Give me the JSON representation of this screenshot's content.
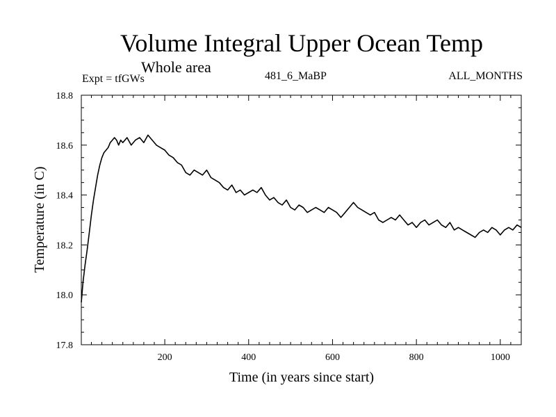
{
  "header": {
    "title": "Volume Integral Upper Ocean Temp",
    "subtitle": "Whole area",
    "experiment": "Expt = tfGWs",
    "expt_name": "481_6_MaBP",
    "months": "ALL_MONTHS"
  },
  "chart_data": {
    "type": "line",
    "title": "Volume Integral Upper Ocean Temp",
    "xlabel": "Time (in years since start)",
    "ylabel": "Temperature (in C)",
    "xlim": [
      1,
      1050
    ],
    "ylim": [
      17.8,
      18.8
    ],
    "xticks": [
      200,
      400,
      600,
      800,
      1000
    ],
    "yticks": [
      17.8,
      18.0,
      18.2,
      18.4,
      18.6,
      18.8
    ],
    "ytick_labels": [
      "17.8",
      "18.0",
      "18.2",
      "18.4",
      "18.6",
      "18.8"
    ],
    "grid": false,
    "line_color": "#000000",
    "series": [
      {
        "name": "Volume integral upper ocean temperature",
        "x": [
          1,
          5,
          10,
          15,
          20,
          25,
          30,
          35,
          40,
          45,
          50,
          55,
          60,
          65,
          70,
          75,
          80,
          85,
          90,
          95,
          100,
          110,
          120,
          130,
          140,
          150,
          160,
          170,
          180,
          190,
          200,
          210,
          220,
          230,
          240,
          250,
          260,
          270,
          280,
          290,
          300,
          310,
          320,
          330,
          340,
          350,
          360,
          370,
          380,
          390,
          400,
          410,
          420,
          430,
          440,
          450,
          460,
          470,
          480,
          490,
          500,
          510,
          520,
          530,
          540,
          550,
          560,
          570,
          580,
          590,
          600,
          610,
          620,
          630,
          640,
          650,
          660,
          670,
          680,
          690,
          700,
          710,
          720,
          730,
          740,
          750,
          760,
          770,
          780,
          790,
          800,
          810,
          820,
          830,
          840,
          850,
          860,
          870,
          880,
          890,
          900,
          910,
          920,
          930,
          940,
          950,
          960,
          970,
          980,
          990,
          1000,
          1010,
          1020,
          1030,
          1040,
          1050
        ],
        "y": [
          17.97,
          18.05,
          18.12,
          18.18,
          18.25,
          18.32,
          18.38,
          18.43,
          18.48,
          18.52,
          18.55,
          18.57,
          18.58,
          18.59,
          18.61,
          18.62,
          18.63,
          18.62,
          18.6,
          18.62,
          18.61,
          18.63,
          18.6,
          18.62,
          18.63,
          18.61,
          18.64,
          18.62,
          18.6,
          18.59,
          18.58,
          18.56,
          18.55,
          18.53,
          18.52,
          18.49,
          18.48,
          18.5,
          18.49,
          18.48,
          18.5,
          18.47,
          18.46,
          18.45,
          18.43,
          18.42,
          18.44,
          18.41,
          18.42,
          18.4,
          18.41,
          18.42,
          18.41,
          18.43,
          18.4,
          18.38,
          18.39,
          18.37,
          18.36,
          18.38,
          18.35,
          18.34,
          18.36,
          18.35,
          18.33,
          18.34,
          18.35,
          18.34,
          18.33,
          18.35,
          18.34,
          18.33,
          18.31,
          18.33,
          18.35,
          18.37,
          18.35,
          18.34,
          18.33,
          18.32,
          18.33,
          18.3,
          18.29,
          18.3,
          18.31,
          18.3,
          18.32,
          18.3,
          18.28,
          18.29,
          18.27,
          18.29,
          18.3,
          18.28,
          18.29,
          18.3,
          18.28,
          18.27,
          18.29,
          18.26,
          18.27,
          18.26,
          18.25,
          18.24,
          18.23,
          18.25,
          18.26,
          18.25,
          18.27,
          18.26,
          18.24,
          18.26,
          18.27,
          18.26,
          18.28,
          18.27
        ]
      }
    ]
  }
}
